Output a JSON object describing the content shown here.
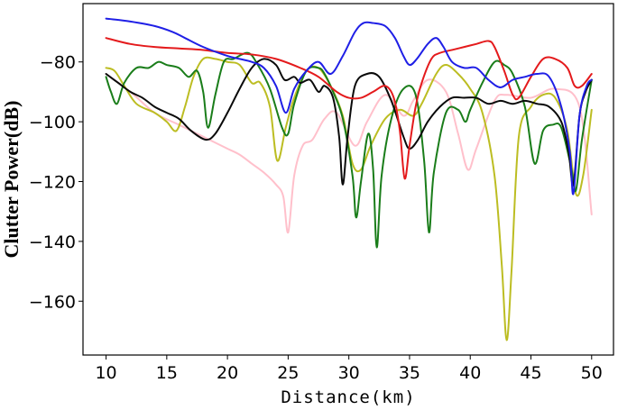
{
  "chart_data": {
    "type": "line",
    "xlabel": "Distance(km)",
    "ylabel": "Clutter Power(dB)",
    "xlim": [
      8.1,
      51.8
    ],
    "ylim": [
      -178,
      -60.5
    ],
    "xticks": [
      10,
      15,
      20,
      25,
      30,
      35,
      40,
      45,
      50
    ],
    "yticks": [
      -80,
      -100,
      -120,
      -140,
      -160
    ],
    "ytick_labels": [
      "−80",
      "−100",
      "−120",
      "−140",
      "−160"
    ],
    "grid": false,
    "legend": "none",
    "series": [
      {
        "color": "#ffc0cb",
        "points": [
          [
            10,
            -84
          ],
          [
            12,
            -90
          ],
          [
            14,
            -97
          ],
          [
            16,
            -101
          ],
          [
            18,
            -105
          ],
          [
            20,
            -109
          ],
          [
            21,
            -111
          ],
          [
            22,
            -114
          ],
          [
            23,
            -117
          ],
          [
            24,
            -121
          ],
          [
            24.6,
            -125
          ],
          [
            25,
            -137
          ],
          [
            25.5,
            -118
          ],
          [
            26.2,
            -108
          ],
          [
            27,
            -106
          ],
          [
            28,
            -99
          ],
          [
            29,
            -97
          ],
          [
            30.5,
            -108
          ],
          [
            31.5,
            -100
          ],
          [
            33,
            -91
          ],
          [
            34.5,
            -98
          ],
          [
            35.3,
            -93
          ],
          [
            36.5,
            -86
          ],
          [
            38,
            -90
          ],
          [
            39,
            -104
          ],
          [
            39.8,
            -116
          ],
          [
            40.5,
            -109
          ],
          [
            42,
            -93
          ],
          [
            43,
            -91
          ],
          [
            45,
            -92
          ],
          [
            47,
            -89
          ],
          [
            49,
            -95
          ],
          [
            50,
            -131
          ]
        ]
      },
      {
        "color": "#bcbd22",
        "points": [
          [
            10,
            -82
          ],
          [
            10.7,
            -83
          ],
          [
            11.5,
            -88
          ],
          [
            12.5,
            -94
          ],
          [
            14,
            -97
          ],
          [
            15,
            -100
          ],
          [
            15.8,
            -103
          ],
          [
            16.5,
            -95
          ],
          [
            17.2,
            -85
          ],
          [
            18,
            -79
          ],
          [
            19,
            -79
          ],
          [
            20,
            -80
          ],
          [
            21,
            -81
          ],
          [
            22,
            -87
          ],
          [
            22.7,
            -87
          ],
          [
            23.5,
            -95
          ],
          [
            24.1,
            -113
          ],
          [
            24.8,
            -102
          ],
          [
            25.5,
            -92
          ],
          [
            26.5,
            -83
          ],
          [
            27.5,
            -82
          ],
          [
            28.5,
            -88
          ],
          [
            29.5,
            -98
          ],
          [
            30.3,
            -114
          ],
          [
            31,
            -116
          ],
          [
            31.8,
            -108
          ],
          [
            33,
            -99
          ],
          [
            34.2,
            -96
          ],
          [
            35.3,
            -98
          ],
          [
            36,
            -94
          ],
          [
            37.2,
            -84
          ],
          [
            38,
            -81
          ],
          [
            39,
            -84
          ],
          [
            40,
            -89
          ],
          [
            41,
            -97
          ],
          [
            42,
            -118
          ],
          [
            42.6,
            -148
          ],
          [
            43,
            -173
          ],
          [
            43.4,
            -150
          ],
          [
            44,
            -105
          ],
          [
            45,
            -95
          ],
          [
            46,
            -91
          ],
          [
            47,
            -92
          ],
          [
            48,
            -103
          ],
          [
            48.7,
            -124
          ],
          [
            49.3,
            -118
          ],
          [
            50,
            -96
          ]
        ]
      },
      {
        "color": "#1a7d1a",
        "points": [
          [
            10,
            -85
          ],
          [
            10.4,
            -90
          ],
          [
            10.9,
            -94
          ],
          [
            11.5,
            -87
          ],
          [
            12.5,
            -82
          ],
          [
            13.5,
            -82
          ],
          [
            14.3,
            -80
          ],
          [
            15,
            -81
          ],
          [
            16,
            -82
          ],
          [
            16.8,
            -85
          ],
          [
            17.5,
            -83
          ],
          [
            18,
            -90
          ],
          [
            18.4,
            -102
          ],
          [
            19,
            -91
          ],
          [
            19.7,
            -80
          ],
          [
            20.5,
            -79
          ],
          [
            21.7,
            -77
          ],
          [
            22.5,
            -81
          ],
          [
            23.5,
            -89
          ],
          [
            24.5,
            -102
          ],
          [
            25,
            -104
          ],
          [
            25.5,
            -94
          ],
          [
            26.5,
            -83
          ],
          [
            27.5,
            -82
          ],
          [
            28,
            -84
          ],
          [
            28.7,
            -90
          ],
          [
            29.5,
            -99
          ],
          [
            30.3,
            -118
          ],
          [
            30.6,
            -132
          ],
          [
            31,
            -120
          ],
          [
            31.6,
            -104
          ],
          [
            32,
            -116
          ],
          [
            32.3,
            -142
          ],
          [
            32.7,
            -118
          ],
          [
            33.5,
            -99
          ],
          [
            34.5,
            -89
          ],
          [
            35.5,
            -91
          ],
          [
            36.2,
            -113
          ],
          [
            36.6,
            -137
          ],
          [
            37,
            -117
          ],
          [
            38,
            -97
          ],
          [
            39,
            -96
          ],
          [
            39.6,
            -100
          ],
          [
            40,
            -96
          ],
          [
            41,
            -87
          ],
          [
            42,
            -80
          ],
          [
            42.8,
            -81
          ],
          [
            43.5,
            -84
          ],
          [
            44.5,
            -95
          ],
          [
            45.3,
            -114
          ],
          [
            46,
            -103
          ],
          [
            46.8,
            -101
          ],
          [
            47.5,
            -102
          ],
          [
            48.3,
            -115
          ],
          [
            48.7,
            -123
          ],
          [
            49.2,
            -106
          ],
          [
            50,
            -86
          ]
        ]
      },
      {
        "color": "#0a0a0a",
        "points": [
          [
            10,
            -84
          ],
          [
            11,
            -87
          ],
          [
            12,
            -90
          ],
          [
            13,
            -92
          ],
          [
            14,
            -95
          ],
          [
            15,
            -97
          ],
          [
            16,
            -99
          ],
          [
            17,
            -103
          ],
          [
            18.2,
            -106
          ],
          [
            19,
            -104
          ],
          [
            20,
            -97
          ],
          [
            21,
            -89
          ],
          [
            22,
            -82
          ],
          [
            23,
            -79
          ],
          [
            24,
            -81
          ],
          [
            24.7,
            -86
          ],
          [
            25.5,
            -85
          ],
          [
            26,
            -87
          ],
          [
            26.8,
            -86
          ],
          [
            27.5,
            -90
          ],
          [
            28,
            -88
          ],
          [
            28.7,
            -92
          ],
          [
            29.2,
            -105
          ],
          [
            29.5,
            -121
          ],
          [
            29.9,
            -105
          ],
          [
            30.5,
            -88
          ],
          [
            31.5,
            -84
          ],
          [
            32.5,
            -85
          ],
          [
            33.5,
            -93
          ],
          [
            34.5,
            -105
          ],
          [
            35,
            -109
          ],
          [
            35.7,
            -106
          ],
          [
            36.5,
            -100
          ],
          [
            37.5,
            -95
          ],
          [
            38.5,
            -92
          ],
          [
            39.5,
            -92
          ],
          [
            40.5,
            -92
          ],
          [
            41.5,
            -94
          ],
          [
            42.5,
            -93
          ],
          [
            43.5,
            -94
          ],
          [
            44.5,
            -93
          ],
          [
            45.5,
            -94
          ],
          [
            46.5,
            -95
          ],
          [
            47.5,
            -100
          ],
          [
            48.1,
            -110
          ],
          [
            48.5,
            -121
          ],
          [
            49,
            -98
          ],
          [
            49.5,
            -90
          ],
          [
            50,
            -86
          ]
        ]
      },
      {
        "color": "#e41a1c",
        "points": [
          [
            10,
            -72
          ],
          [
            12,
            -74
          ],
          [
            14,
            -75
          ],
          [
            16,
            -75.5
          ],
          [
            18,
            -76
          ],
          [
            20,
            -77
          ],
          [
            22,
            -77.5
          ],
          [
            24,
            -79
          ],
          [
            26,
            -82
          ],
          [
            27.5,
            -85
          ],
          [
            29,
            -90
          ],
          [
            30,
            -92
          ],
          [
            31,
            -92
          ],
          [
            32,
            -90
          ],
          [
            33,
            -88
          ],
          [
            33.7,
            -92
          ],
          [
            34.2,
            -103
          ],
          [
            34.6,
            -119
          ],
          [
            35,
            -108
          ],
          [
            35.5,
            -95
          ],
          [
            36,
            -87
          ],
          [
            36.8,
            -79
          ],
          [
            37.5,
            -77
          ],
          [
            38.5,
            -76
          ],
          [
            39.5,
            -75
          ],
          [
            40.5,
            -74
          ],
          [
            41.5,
            -73
          ],
          [
            42,
            -75
          ],
          [
            42.8,
            -83
          ],
          [
            43.5,
            -91
          ],
          [
            44,
            -92
          ],
          [
            45,
            -85
          ],
          [
            46,
            -79
          ],
          [
            47,
            -79
          ],
          [
            48,
            -82
          ],
          [
            48.6,
            -88
          ],
          [
            49.2,
            -88
          ],
          [
            50,
            -84
          ]
        ]
      },
      {
        "color": "#1f1fe6",
        "points": [
          [
            10,
            -65.5
          ],
          [
            12,
            -66.5
          ],
          [
            14,
            -68
          ],
          [
            15.5,
            -70
          ],
          [
            16.5,
            -72
          ],
          [
            18,
            -75
          ],
          [
            20,
            -78
          ],
          [
            21,
            -79
          ],
          [
            22,
            -80
          ],
          [
            23,
            -82
          ],
          [
            24,
            -88
          ],
          [
            24.8,
            -97
          ],
          [
            25.5,
            -89
          ],
          [
            26.5,
            -83
          ],
          [
            27.5,
            -80
          ],
          [
            28.5,
            -84
          ],
          [
            29.5,
            -78
          ],
          [
            30.5,
            -70
          ],
          [
            31.2,
            -67
          ],
          [
            32,
            -67
          ],
          [
            33,
            -68
          ],
          [
            33.8,
            -72
          ],
          [
            34.5,
            -78
          ],
          [
            35,
            -81
          ],
          [
            35.6,
            -79
          ],
          [
            36.5,
            -74
          ],
          [
            37.2,
            -72
          ],
          [
            37.8,
            -75
          ],
          [
            38.5,
            -80
          ],
          [
            39.5,
            -82
          ],
          [
            40.5,
            -82
          ],
          [
            41.5,
            -86
          ],
          [
            42.5,
            -88.5
          ],
          [
            43.5,
            -86
          ],
          [
            44.5,
            -85
          ],
          [
            45.5,
            -84
          ],
          [
            46.5,
            -85
          ],
          [
            47.5,
            -95
          ],
          [
            48.2,
            -110
          ],
          [
            48.5,
            -124
          ],
          [
            49,
            -98
          ],
          [
            49.6,
            -88
          ],
          [
            50,
            -86
          ]
        ]
      }
    ]
  }
}
